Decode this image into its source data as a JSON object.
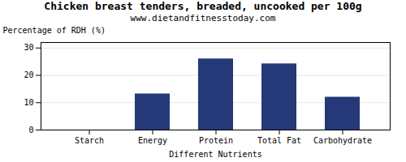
{
  "chart_data": {
    "type": "bar",
    "title": "Chicken breast tenders, breaded, uncooked per 100g",
    "subtitle": "www.dietandfitnesstoday.com",
    "xlabel": "Different Nutrients",
    "ylabel": "Percentage of RDH (%)",
    "categories": [
      "Starch",
      "Energy",
      "Protein",
      "Total Fat",
      "Carbohydrate"
    ],
    "values": [
      0,
      13.2,
      26.0,
      24.2,
      12.0
    ],
    "color": "#253878",
    "ylim": [
      0,
      32
    ],
    "yticks": [
      0,
      10,
      20,
      30
    ],
    "grid": true
  }
}
